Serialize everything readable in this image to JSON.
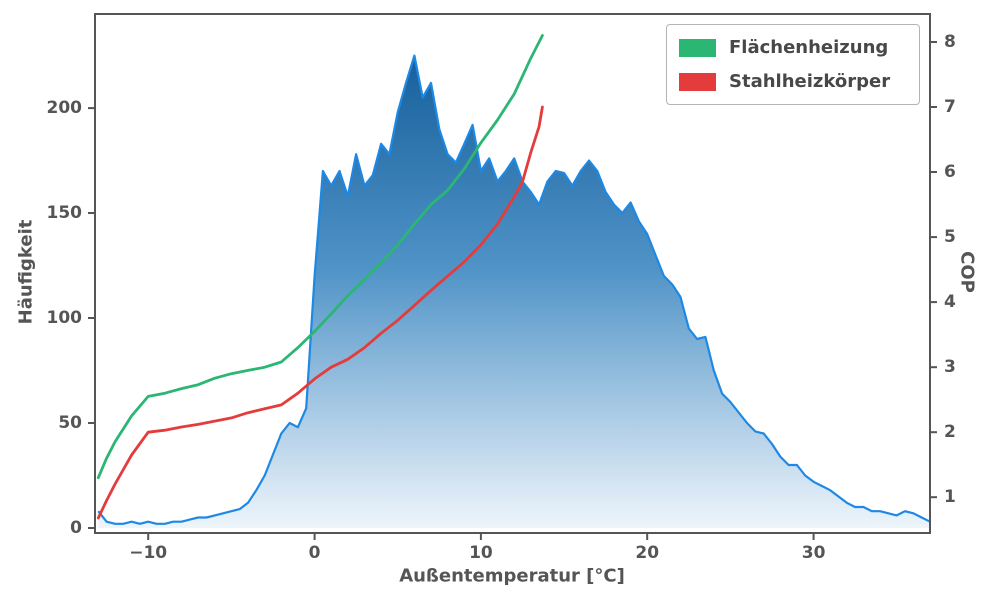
{
  "figure": {
    "background": "#ffffff",
    "axis_color": "#555555",
    "text_color": "#555555"
  },
  "chart_data": {
    "type": "area",
    "title": "",
    "xlabel": "Außentemperatur [°C]",
    "ylabel_left": "Häufigkeit",
    "ylabel_right": "COP",
    "xlim": [
      -13.2,
      37.0
    ],
    "ylim_left": [
      -2.4,
      244.8
    ],
    "ylim_right": [
      0.45,
      8.43
    ],
    "x_ticks": [
      -10,
      0,
      10,
      20,
      30
    ],
    "y_left_ticks": [
      0,
      50,
      100,
      150,
      200
    ],
    "y_right_ticks": [
      1,
      2,
      3,
      4,
      5,
      6,
      7,
      8
    ],
    "grid": false,
    "legend_position": "upper right",
    "histogram": {
      "type": "area",
      "axis": "left",
      "line_color": "#1e88e5",
      "fill_gradient": [
        {
          "offset": 0,
          "color": "#17609c"
        },
        {
          "offset": 0.45,
          "color": "#4f93c7"
        },
        {
          "offset": 0.8,
          "color": "#b6d2e9"
        },
        {
          "offset": 1,
          "color": "#eef5fb"
        }
      ],
      "x_start": -13,
      "x_step": 0.5,
      "values": [
        8,
        3,
        2,
        2,
        3,
        2,
        3,
        2,
        2,
        3,
        3,
        4,
        5,
        5,
        6,
        7,
        8,
        9,
        12,
        18,
        25,
        35,
        45,
        50,
        48,
        57,
        120,
        170,
        163,
        170,
        158,
        178,
        163,
        168,
        183,
        178,
        198,
        212,
        225,
        205,
        212,
        190,
        178,
        174,
        183,
        192,
        170,
        176,
        165,
        170,
        176,
        165,
        160,
        154,
        165,
        170,
        169,
        163,
        170,
        175,
        170,
        160,
        154,
        150,
        155,
        146,
        140,
        130,
        120,
        116,
        110,
        95,
        90,
        91,
        75,
        64,
        60,
        55,
        50,
        46,
        45,
        40,
        34,
        30,
        30,
        25,
        22,
        20,
        18,
        15,
        12,
        10,
        10,
        8,
        8,
        7,
        6,
        8,
        7,
        5,
        3
      ]
    },
    "series": [
      {
        "name": "Flächenheizung",
        "color": "#2bb673",
        "axis": "right",
        "x": [
          -13,
          -12.5,
          -12,
          -11,
          -10,
          -9,
          -8,
          -7,
          -6,
          -5,
          -4,
          -3,
          -2,
          -1,
          0,
          1,
          2,
          3,
          4,
          5,
          6,
          7,
          8,
          9,
          10,
          11,
          12,
          13,
          13.7
        ],
        "y": [
          1.3,
          1.6,
          1.85,
          2.25,
          2.55,
          2.6,
          2.67,
          2.73,
          2.83,
          2.9,
          2.95,
          3.0,
          3.08,
          3.3,
          3.55,
          3.82,
          4.1,
          4.35,
          4.6,
          4.88,
          5.2,
          5.5,
          5.72,
          6.05,
          6.45,
          6.8,
          7.2,
          7.75,
          8.1
        ]
      },
      {
        "name": "Stahlheizkörper",
        "color": "#e43c3c",
        "axis": "right",
        "x": [
          -13,
          -12.5,
          -12,
          -11,
          -10,
          -9,
          -8,
          -7,
          -6,
          -5,
          -4,
          -3,
          -2,
          -1,
          0,
          1,
          2,
          3,
          4,
          5,
          6,
          7,
          8,
          9,
          10,
          11,
          12,
          12.5,
          13,
          13.5,
          13.7
        ],
        "y": [
          0.68,
          0.95,
          1.2,
          1.65,
          2.0,
          2.03,
          2.08,
          2.12,
          2.17,
          2.22,
          2.3,
          2.36,
          2.42,
          2.6,
          2.82,
          3.0,
          3.12,
          3.3,
          3.52,
          3.72,
          3.95,
          4.18,
          4.4,
          4.62,
          4.88,
          5.2,
          5.62,
          5.85,
          6.3,
          6.7,
          7.0
        ]
      }
    ]
  }
}
